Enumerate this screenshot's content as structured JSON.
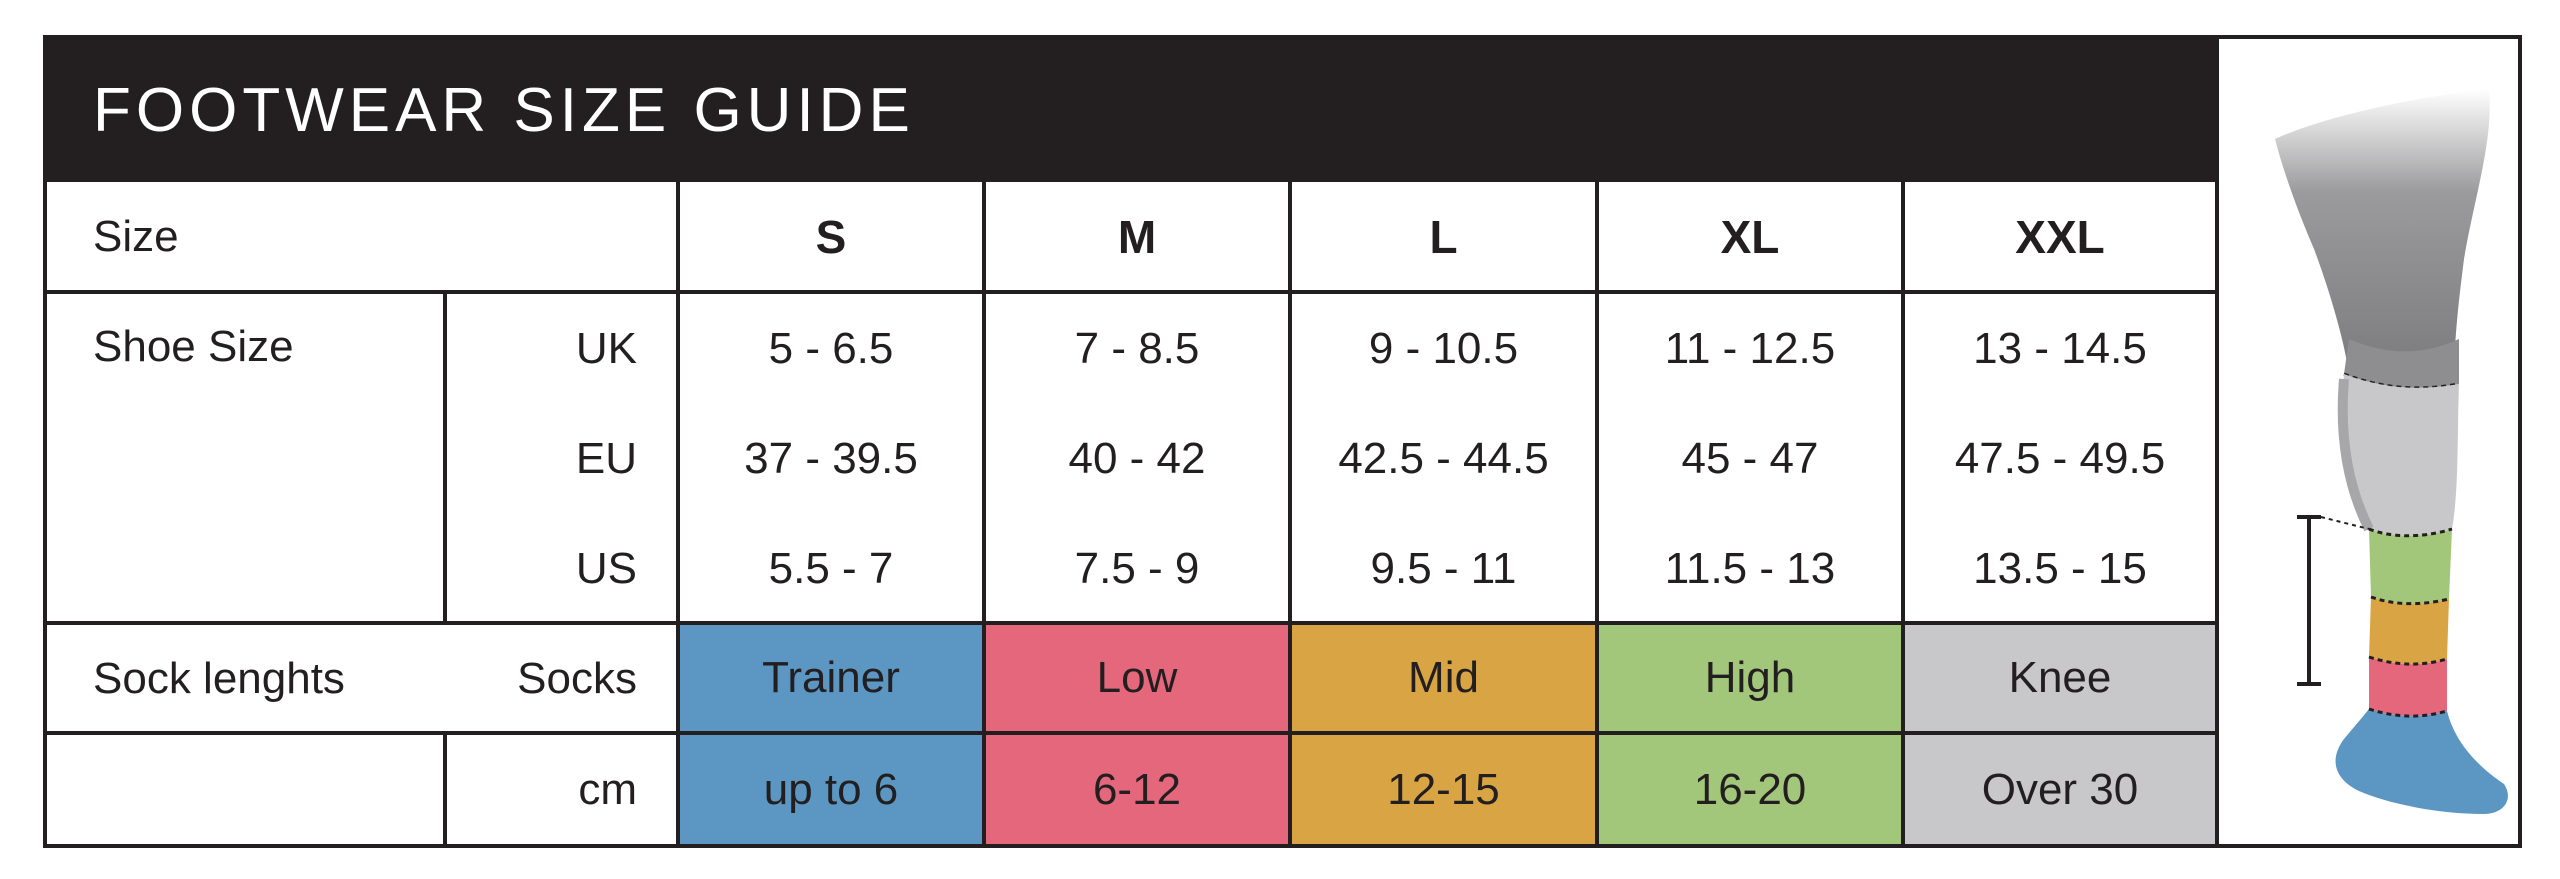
{
  "title": "FOOTWEAR SIZE GUIDE",
  "row_labels": {
    "size": "Size",
    "shoe_size": "Shoe Size",
    "sock_lengths": "Sock lenghts"
  },
  "units": [
    "UK",
    "EU",
    "US",
    "Socks",
    "cm"
  ],
  "sizes": [
    "S",
    "M",
    "L",
    "XL",
    "XXL"
  ],
  "uk": [
    "5 - 6.5",
    "7 - 8.5",
    "9 - 10.5",
    "11 - 12.5",
    "13 - 14.5"
  ],
  "eu": [
    "37 - 39.5",
    "40 - 42",
    "42.5 - 44.5",
    "45 - 47",
    "47.5 - 49.5"
  ],
  "us": [
    "5.5 - 7",
    "7.5 - 9",
    "9.5 - 11",
    "11.5 - 13",
    "13.5 - 15"
  ],
  "socks": [
    "Trainer",
    "Low",
    "Mid",
    "High",
    "Knee"
  ],
  "cm": [
    "up to 6",
    "6-12",
    "12-15",
    "16-20",
    "Over 30"
  ],
  "colors": {
    "trainer": "#5b97c2",
    "low": "#e4677b",
    "mid": "#d9a544",
    "high": "#a3c77a",
    "knee": "#c8c8ca",
    "dark": "#231f20"
  }
}
